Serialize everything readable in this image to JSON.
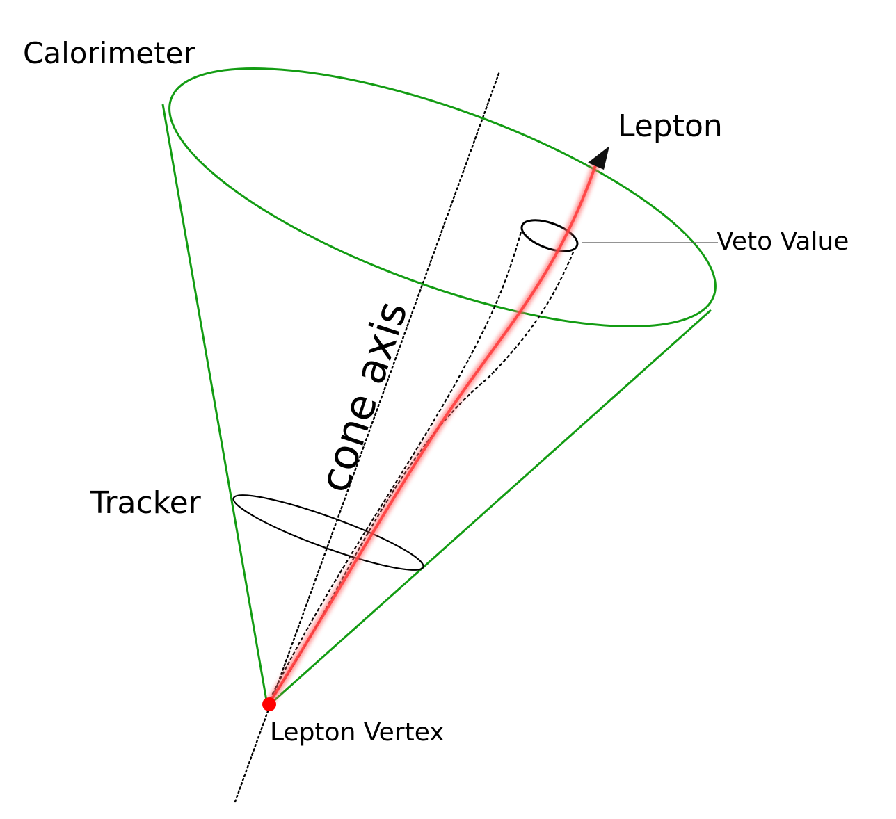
{
  "labels": {
    "calorimeter": "Calorimeter",
    "lepton": "Lepton",
    "veto_value": "Veto Value",
    "cone_axis": "cone axis",
    "tracker": "Tracker",
    "lepton_vertex": "Lepton Vertex"
  },
  "colors": {
    "cone": "#139c13",
    "track": "#ff3a3a",
    "vertex": "#ff0000",
    "ink": "#000000"
  }
}
